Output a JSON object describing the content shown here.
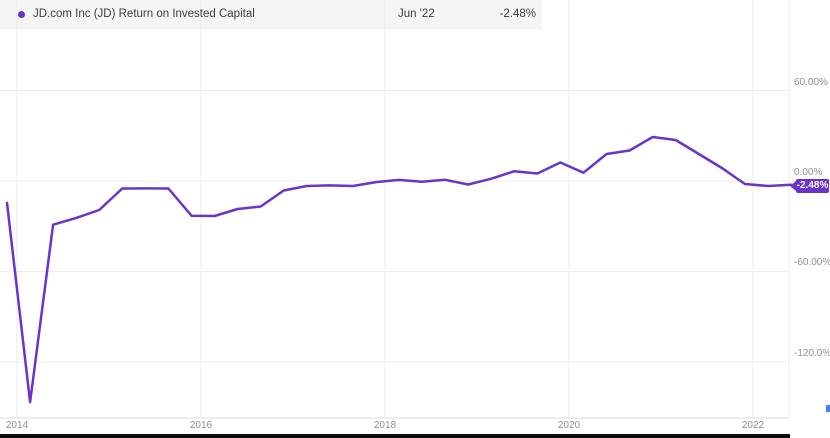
{
  "legend": {
    "series_label": "JD.com Inc (JD) Return on Invested Capital",
    "hover_date": "Jun '22",
    "hover_value": "-2.48%"
  },
  "badge": {
    "label": "-2.48%"
  },
  "colors": {
    "line": "#6B34C8",
    "badge_bg": "#6B34C8",
    "legend_dot": "#6B34C8",
    "grid": "#ececec",
    "axis_line": "#dcdcdc",
    "axis_text": "#8f8f8f",
    "legend_bg": "#f5f5f5",
    "bottom_bar": "#0b0b0b",
    "corner_accent": "#4285f4"
  },
  "y_axis": {
    "ticks": [
      {
        "label": "60.00%",
        "value": 60
      },
      {
        "label": "0.00%",
        "value": 0
      },
      {
        "label": "-60.00%",
        "value": -60
      },
      {
        "label": "-120.0%",
        "value": -120
      }
    ]
  },
  "x_axis": {
    "ticks": [
      {
        "label": "2014",
        "year": 2014
      },
      {
        "label": "2016",
        "year": 2016
      },
      {
        "label": "2018",
        "year": 2018
      },
      {
        "label": "2020",
        "year": 2020
      },
      {
        "label": "2022",
        "year": 2022
      }
    ]
  },
  "chart_data": {
    "type": "line",
    "title": "JD.com Inc (JD) Return on Invested Capital",
    "ylabel": "Return on Invested Capital (%)",
    "xlabel": "",
    "unit": "%",
    "grid": true,
    "legend_position": "top-left",
    "ylim": [
      -155,
      75
    ],
    "x": [
      "Dec '13",
      "Mar '14",
      "Jun '14",
      "Sep '14",
      "Dec '14",
      "Mar '15",
      "Jun '15",
      "Sep '15",
      "Dec '15",
      "Mar '16",
      "Jun '16",
      "Sep '16",
      "Dec '16",
      "Mar '17",
      "Jun '17",
      "Sep '17",
      "Dec '17",
      "Mar '18",
      "Jun '18",
      "Sep '18",
      "Dec '18",
      "Mar '19",
      "Jun '19",
      "Sep '19",
      "Dec '19",
      "Mar '20",
      "Jun '20",
      "Sep '20",
      "Dec '20",
      "Mar '21",
      "Jun '21",
      "Sep '21",
      "Dec '21",
      "Mar '22",
      "Jun '22"
    ],
    "values": [
      -14.5,
      -146.6,
      -29.0,
      -24.5,
      -19.2,
      -5.0,
      -4.9,
      -5.0,
      -23.0,
      -23.2,
      -18.6,
      -16.9,
      -6.3,
      -3.3,
      -2.9,
      -3.3,
      -0.7,
      0.7,
      -0.5,
      0.8,
      -2.3,
      1.5,
      6.5,
      5.0,
      12.3,
      5.5,
      17.9,
      20.2,
      29.2,
      27.2,
      17.9,
      8.6,
      -2.0,
      -3.3,
      -2.48
    ],
    "last_point": {
      "date": "Jun '22",
      "value": -2.48
    }
  }
}
